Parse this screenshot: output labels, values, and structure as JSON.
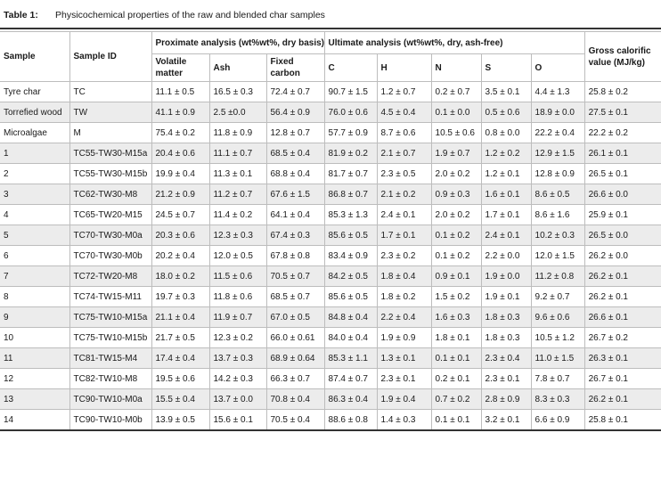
{
  "caption": {
    "label": "Table 1:",
    "text": "Physicochemical properties of the raw and blended char samples"
  },
  "headers": {
    "sample": "Sample",
    "sample_id": "Sample ID",
    "proximate": "Proximate analysis (wt%wt%, dry basis)",
    "ultimate": "Ultimate analysis (wt%wt%, dry, ash-free)",
    "gross": "Gross calorific value (MJ/kg)",
    "volatile": "Volatile matter",
    "ash": "Ash",
    "fixed_carbon": "Fixed carbon",
    "c": "C",
    "h": "H",
    "n": "N",
    "s": "S",
    "o": "O"
  },
  "rows": [
    [
      "Tyre char",
      "TC",
      "11.1 ± 0.5",
      "16.5 ± 0.3",
      "72.4 ± 0.7",
      "90.7 ± 1.5",
      "1.2 ± 0.7",
      "0.2 ± 0.7",
      "3.5 ± 0.1",
      "4.4 ± 1.3",
      "25.8 ± 0.2"
    ],
    [
      "Torrefied wood",
      "TW",
      "41.1 ± 0.9",
      "2.5 ±0.0",
      "56.4 ± 0.9",
      "76.0 ± 0.6",
      "4.5 ± 0.4",
      "0.1 ± 0.0",
      "0.5 ± 0.6",
      "18.9 ± 0.0",
      "27.5 ± 0.1"
    ],
    [
      "Microalgae",
      "M",
      "75.4 ± 0.2",
      "11.8 ± 0.9",
      "12.8 ± 0.7",
      "57.7 ± 0.9",
      "8.7 ± 0.6",
      "10.5 ± 0.6",
      "0.8 ± 0.0",
      "22.2 ± 0.4",
      "22.2 ± 0.2"
    ],
    [
      "1",
      "TC55-TW30-M15a",
      "20.4 ± 0.6",
      "11.1 ± 0.7",
      "68.5 ± 0.4",
      "81.9 ± 0.2",
      "2.1 ± 0.7",
      "1.9 ± 0.7",
      "1.2 ± 0.2",
      "12.9 ± 1.5",
      "26.1 ± 0.1"
    ],
    [
      "2",
      "TC55-TW30-M15b",
      "19.9 ± 0.4",
      "11.3 ± 0.1",
      "68.8 ± 0.4",
      "81.7 ± 0.7",
      "2.3 ± 0.5",
      "2.0 ± 0.2",
      "1.2 ± 0.1",
      "12.8 ± 0.9",
      "26.5 ± 0.1"
    ],
    [
      "3",
      "TC62-TW30-M8",
      "21.2 ± 0.9",
      "11.2 ± 0.7",
      "67.6 ± 1.5",
      "86.8 ± 0.7",
      "2.1 ± 0.2",
      "0.9 ± 0.3",
      "1.6 ± 0.1",
      "8.6 ± 0.5",
      "26.6 ± 0.0"
    ],
    [
      "4",
      "TC65-TW20-M15",
      "24.5 ± 0.7",
      "11.4 ± 0.2",
      "64.1 ± 0.4",
      "85.3 ± 1.3",
      "2.4 ± 0.1",
      "2.0 ± 0.2",
      "1.7 ± 0.1",
      "8.6 ± 1.6",
      "25.9 ± 0.1"
    ],
    [
      "5",
      "TC70-TW30-M0a",
      "20.3 ± 0.6",
      "12.3 ± 0.3",
      "67.4 ± 0.3",
      "85.6 ± 0.5",
      "1.7 ± 0.1",
      "0.1 ± 0.2",
      "2.4 ± 0.1",
      "10.2 ± 0.3",
      "26.5 ± 0.0"
    ],
    [
      "6",
      "TC70-TW30-M0b",
      "20.2 ± 0.4",
      "12.0 ± 0.5",
      "67.8 ± 0.8",
      "83.4 ± 0.9",
      "2.3 ± 0.2",
      "0.1 ± 0.2",
      "2.2 ± 0.0",
      "12.0 ± 1.5",
      "26.2 ± 0.0"
    ],
    [
      "7",
      "TC72-TW20-M8",
      "18.0 ± 0.2",
      "11.5 ± 0.6",
      "70.5 ± 0.7",
      "84.2 ± 0.5",
      "1.8 ± 0.4",
      "0.9 ± 0.1",
      "1.9 ± 0.0",
      "11.2 ± 0.8",
      "26.2 ± 0.1"
    ],
    [
      "8",
      "TC74-TW15-M11",
      "19.7 ± 0.3",
      "11.8 ± 0.6",
      "68.5 ± 0.7",
      "85.6 ± 0.5",
      "1.8 ± 0.2",
      "1.5 ± 0.2",
      "1.9 ± 0.1",
      "9.2 ± 0.7",
      "26.2 ± 0.1"
    ],
    [
      "9",
      "TC75-TW10-M15a",
      "21.1 ± 0.4",
      "11.9 ± 0.7",
      "67.0 ± 0.5",
      "84.8 ± 0.4",
      "2.2 ± 0.4",
      "1.6 ± 0.3",
      "1.8 ± 0.3",
      "9.6 ± 0.6",
      "26.6 ± 0.1"
    ],
    [
      "10",
      "TC75-TW10-M15b",
      "21.7 ± 0.5",
      "12.3 ± 0.2",
      "66.0 ± 0.61",
      "84.0 ± 0.4",
      "1.9 ± 0.9",
      "1.8 ± 0.1",
      "1.8 ± 0.3",
      "10.5 ± 1.2",
      "26.7 ± 0.2"
    ],
    [
      "11",
      "TC81-TW15-M4",
      "17.4 ± 0.4",
      "13.7 ± 0.3",
      "68.9 ± 0.64",
      "85.3 ± 1.1",
      "1.3 ± 0.1",
      "0.1 ± 0.1",
      "2.3 ± 0.4",
      "11.0 ± 1.5",
      "26.3 ± 0.1"
    ],
    [
      "12",
      "TC82-TW10-M8",
      "19.5 ± 0.6",
      "14.2 ± 0.3",
      "66.3 ± 0.7",
      "87.4 ± 0.7",
      "2.3 ± 0.1",
      "0.2 ± 0.1",
      "2.3 ± 0.1",
      "7.8 ± 0.7",
      "26.7 ± 0.1"
    ],
    [
      "13",
      "TC90-TW10-M0a",
      "15.5 ± 0.4",
      "13.7 ± 0.0",
      "70.8 ± 0.4",
      "86.3 ± 0.4",
      "1.9 ± 0.4",
      "0.7 ± 0.2",
      "2.8 ± 0.9",
      "8.3 ± 0.3",
      "26.2 ± 0.1"
    ],
    [
      "14",
      "TC90-TW10-M0b",
      "13.9 ± 0.5",
      "15.6 ± 0.1",
      "70.5 ± 0.4",
      "88.6 ± 0.8",
      "1.4 ± 0.3",
      "0.1 ± 0.1",
      "3.2 ± 0.1",
      "6.6 ± 0.9",
      "25.8 ± 0.1"
    ]
  ]
}
